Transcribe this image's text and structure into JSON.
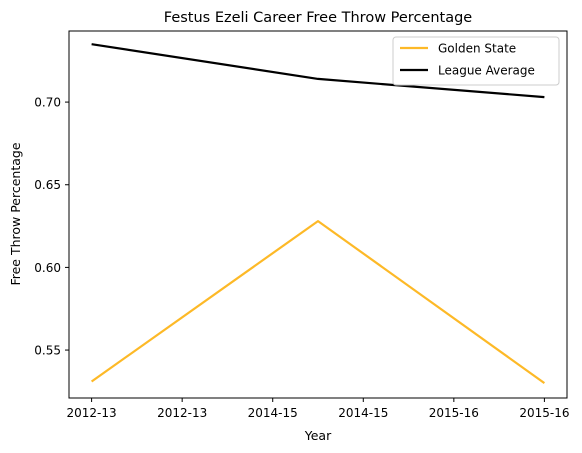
{
  "chart_data": {
    "type": "line",
    "title": "Festus Ezeli Career Free Throw Percentage",
    "xlabel": "Year",
    "ylabel": "Free Throw Percentage",
    "x_positions": [
      0,
      1,
      2
    ],
    "x_tick_labels": [
      "2012-13",
      "2012-13",
      "2014-15",
      "2014-15",
      "2015-16",
      "2015-16"
    ],
    "ylim": [
      0.521,
      0.743
    ],
    "y_ticks": [
      0.55,
      0.6,
      0.65,
      0.7
    ],
    "y_tick_labels": [
      "0.55",
      "0.60",
      "0.65",
      "0.70"
    ],
    "grid": false,
    "legend_position": "top-right",
    "series": [
      {
        "name": "Golden State",
        "color": "#FDB927",
        "values": [
          0.531,
          0.628,
          0.53
        ]
      },
      {
        "name": "League Average",
        "color": "#000000",
        "values": [
          0.735,
          0.714,
          0.703
        ]
      }
    ]
  }
}
